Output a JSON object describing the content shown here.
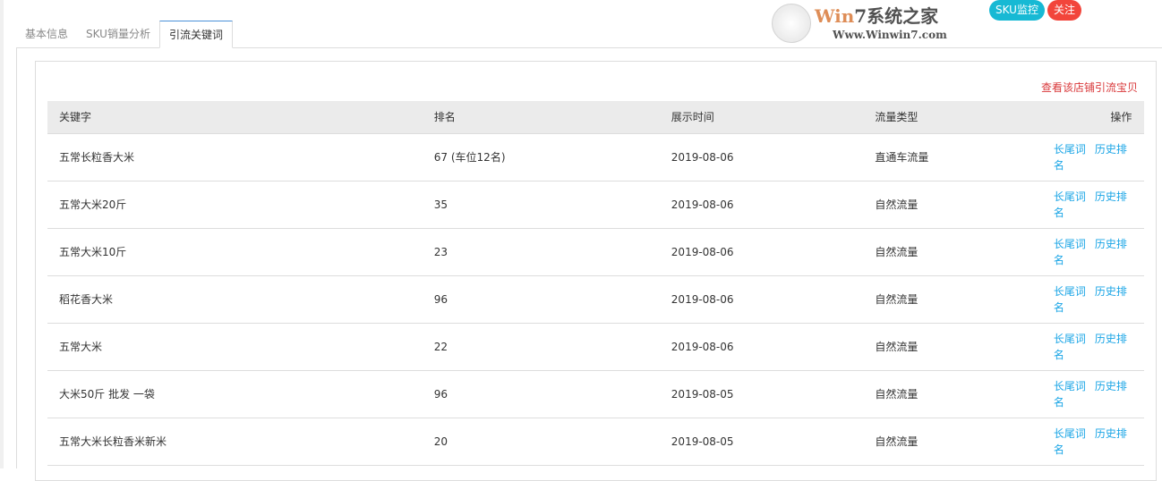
{
  "buttons": {
    "sku_monitor": "SKU监控",
    "follow": "关注",
    "sku_color": "#17b9d4",
    "follow_color": "#f2453b"
  },
  "tabs": [
    {
      "label": "基本信息"
    },
    {
      "label": "SKU销量分析"
    },
    {
      "label": "引流关键词",
      "active": true
    }
  ],
  "store_link": "查看该店铺引流宝贝",
  "table": {
    "headers": [
      "关键字",
      "排名",
      "展示时间",
      "流量类型",
      "操作"
    ],
    "rows": [
      {
        "keyword": "五常长粒香大米",
        "rank": "67 (车位12名)",
        "date": "2019-08-06",
        "type": "直通车流量"
      },
      {
        "keyword": "五常大米20斤",
        "rank": "35",
        "date": "2019-08-06",
        "type": "自然流量"
      },
      {
        "keyword": "五常大米10斤",
        "rank": "23",
        "date": "2019-08-06",
        "type": "自然流量"
      },
      {
        "keyword": "稻花香大米",
        "rank": "96",
        "date": "2019-08-06",
        "type": "自然流量"
      },
      {
        "keyword": "五常大米",
        "rank": "22",
        "date": "2019-08-06",
        "type": "自然流量"
      },
      {
        "keyword": "大米50斤 批发 一袋",
        "rank": "96",
        "date": "2019-08-05",
        "type": "自然流量"
      },
      {
        "keyword": "五常大米长粒香米新米",
        "rank": "20",
        "date": "2019-08-05",
        "type": "自然流量"
      }
    ],
    "actions": [
      "长尾词",
      "历史排名"
    ]
  },
  "watermark": {
    "title_a": "Win",
    "title_b": "7系统之家",
    "url": "Www.Winwin7.com"
  }
}
